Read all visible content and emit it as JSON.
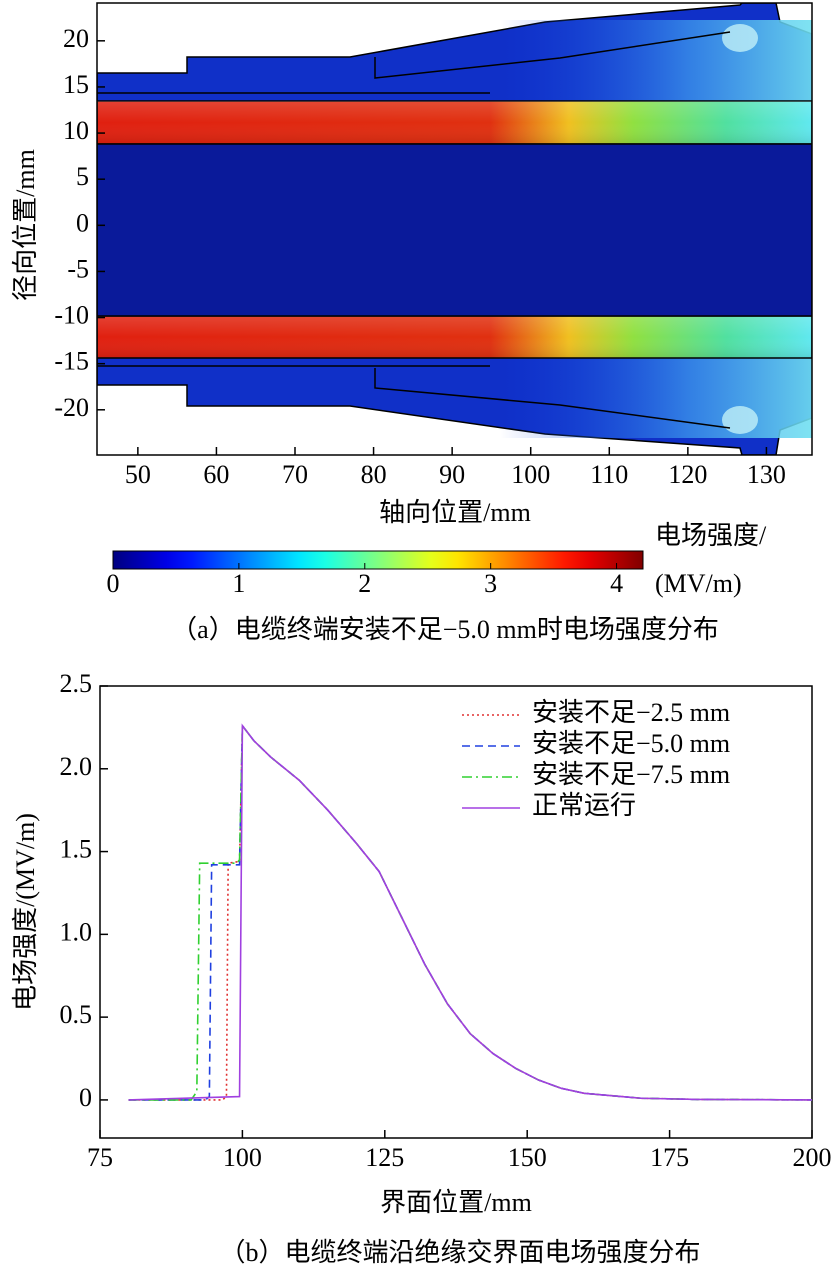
{
  "chart_data": [
    {
      "type": "heatmap",
      "xlabel": "轴向位置/mm",
      "ylabel": "径向位置/mm",
      "xlim": [
        44.8,
        135.8
      ],
      "xticks": [
        50,
        60,
        70,
        80,
        90,
        100,
        110,
        120,
        130
      ],
      "ylim": [
        -24.9,
        24.1
      ],
      "yticks": [
        -20,
        -15,
        -10,
        -5,
        0,
        5,
        10,
        15,
        20
      ],
      "colormap": "jet",
      "colorbar": {
        "label": [
          "电场强度/",
          "(MV/m)"
        ],
        "lim": [
          0,
          4.21
        ],
        "ticks": [
          0,
          1,
          2,
          3,
          4
        ]
      },
      "caption": "（a）电缆终端安装不足−5.0 mm时电场强度分布"
    },
    {
      "type": "line",
      "xlabel": "界面位置/mm",
      "ylabel": "电场强度/(MV/m)",
      "xlim": [
        75,
        200
      ],
      "xticks": [
        75,
        100,
        125,
        150,
        175,
        200
      ],
      "ylim": [
        -0.23,
        2.5
      ],
      "yticks": [
        0,
        0.5,
        {
          "value": 1,
          "label": "1.0"
        },
        1.5,
        {
          "value": 2,
          "label": "2.0"
        },
        2.5
      ],
      "legend": "upper right",
      "series": [
        {
          "name": "安装不足−2.5 mm",
          "color": "#e03030",
          "dash": "dotted",
          "x": [
            80,
            96.5,
            97.2,
            97.5,
            99.5,
            100,
            102,
            105,
            110,
            115,
            120,
            124,
            128,
            132,
            136,
            140,
            144,
            148,
            152,
            156,
            160,
            170,
            180,
            200
          ],
          "values": [
            0,
            0,
            0.02,
            1.43,
            1.44,
            2.26,
            2.17,
            2.07,
            1.93,
            1.75,
            1.55,
            1.38,
            1.1,
            0.82,
            0.58,
            0.4,
            0.28,
            0.19,
            0.12,
            0.07,
            0.04,
            0.01,
            0.003,
            0
          ]
        },
        {
          "name": "安装不足−5.0 mm",
          "color": "#2040e0",
          "dash": "dashed",
          "x": [
            80,
            93.5,
            94.2,
            94.6,
            99.5,
            100,
            102,
            105,
            110,
            115,
            120,
            124,
            128,
            132,
            136,
            140,
            144,
            148,
            152,
            156,
            160,
            170,
            180,
            200
          ],
          "values": [
            0,
            0,
            0.02,
            1.42,
            1.42,
            2.26,
            2.17,
            2.07,
            1.93,
            1.75,
            1.55,
            1.38,
            1.1,
            0.82,
            0.58,
            0.4,
            0.28,
            0.19,
            0.12,
            0.07,
            0.04,
            0.01,
            0.003,
            0
          ]
        },
        {
          "name": "安装不足−7.5 mm",
          "color": "#30d030",
          "dash": "dashdot",
          "x": [
            80,
            91,
            92,
            92.5,
            99,
            99.5,
            100,
            102,
            105,
            110,
            115,
            120,
            124,
            128,
            132,
            136,
            140,
            144,
            148,
            152,
            156,
            160,
            170,
            180,
            200
          ],
          "values": [
            0,
            0,
            0.05,
            1.43,
            1.43,
            1.45,
            2.26,
            2.17,
            2.07,
            1.93,
            1.75,
            1.55,
            1.38,
            1.1,
            0.82,
            0.58,
            0.4,
            0.28,
            0.19,
            0.12,
            0.07,
            0.04,
            0.01,
            0.003,
            0
          ]
        },
        {
          "name": "正常运行",
          "color": "#a040e0",
          "dash": "solid",
          "x": [
            80,
            99.5,
            100,
            102,
            105,
            110,
            115,
            120,
            124,
            128,
            132,
            136,
            140,
            144,
            148,
            152,
            156,
            160,
            170,
            180,
            200
          ],
          "values": [
            0,
            0.02,
            2.26,
            2.17,
            2.07,
            1.93,
            1.75,
            1.55,
            1.38,
            1.1,
            0.82,
            0.58,
            0.4,
            0.28,
            0.19,
            0.12,
            0.07,
            0.04,
            0.01,
            0.003,
            0
          ]
        }
      ],
      "caption": "（b）电缆终端沿绝缘交界面电场强度分布"
    }
  ]
}
